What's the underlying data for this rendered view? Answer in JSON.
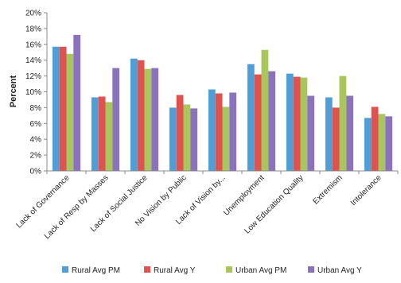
{
  "chart_data": {
    "type": "bar",
    "title": "",
    "xlabel": "",
    "ylabel": "Percent",
    "ylim": [
      0,
      20
    ],
    "yticks": [
      "0%",
      "2%",
      "4%",
      "6%",
      "8%",
      "10%",
      "12%",
      "14%",
      "16%",
      "18%",
      "20%"
    ],
    "grid": false,
    "legend_position": "bottom",
    "categories": [
      "Lack of Governance",
      "Lack of Resp by Masses",
      "Lack of Social Justice",
      "No Vision by Public",
      "Lack of Vision by...",
      "Unemployment",
      "Low Education Quality",
      "Extremism",
      "Intolerance"
    ],
    "series": [
      {
        "name": "Rural Avg PM",
        "color": "#4f9fd6",
        "values": [
          15.7,
          9.3,
          14.2,
          8.0,
          10.3,
          13.5,
          12.3,
          9.3,
          6.7
        ]
      },
      {
        "name": "Rural Avg Y",
        "color": "#e0524f",
        "values": [
          15.7,
          9.4,
          14.0,
          9.6,
          9.8,
          12.2,
          11.9,
          8.0,
          8.1
        ]
      },
      {
        "name": "Urban Avg PM",
        "color": "#a9c65d",
        "values": [
          14.8,
          8.7,
          12.9,
          8.4,
          8.1,
          15.3,
          11.8,
          12.0,
          7.2
        ]
      },
      {
        "name": "Urban Avg Y",
        "color": "#8b72bd",
        "values": [
          17.2,
          13.0,
          13.0,
          7.9,
          9.9,
          12.6,
          9.5,
          9.5,
          6.9
        ]
      }
    ]
  }
}
